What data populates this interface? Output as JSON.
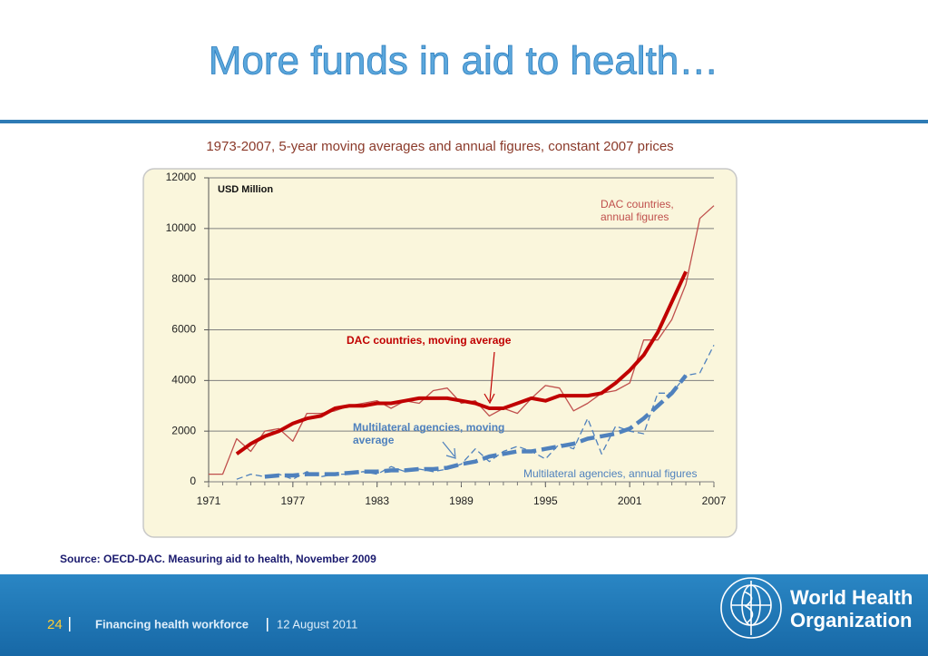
{
  "slide_title": "More funds in aid to health…",
  "chart_data": {
    "type": "line",
    "subtitle": "1973-2007, 5-year moving averages and annual figures, constant 2007 prices",
    "y_label": "USD Million",
    "x": [
      1971,
      1972,
      1973,
      1974,
      1975,
      1976,
      1977,
      1978,
      1979,
      1980,
      1981,
      1982,
      1983,
      1984,
      1985,
      1986,
      1987,
      1988,
      1989,
      1990,
      1991,
      1992,
      1993,
      1994,
      1995,
      1996,
      1997,
      1998,
      1999,
      2000,
      2001,
      2002,
      2003,
      2004,
      2005,
      2006,
      2007
    ],
    "xlim": [
      1971,
      2007
    ],
    "xticks": [
      1971,
      1977,
      1983,
      1989,
      1995,
      2001,
      2007
    ],
    "ylim": [
      0,
      12000
    ],
    "yticks": [
      0,
      2000,
      4000,
      6000,
      8000,
      10000,
      12000
    ],
    "grid": true,
    "series": [
      {
        "color": "#c0504d",
        "style": "thin",
        "values": [
          300,
          300,
          1700,
          1200,
          2000,
          2100,
          1600,
          2700,
          2700,
          2800,
          3000,
          3100,
          3200,
          2900,
          3200,
          3100,
          3600,
          3700,
          3100,
          3200,
          2600,
          2900,
          2700,
          3300,
          3800,
          3700,
          2800,
          3100,
          3500,
          3600,
          3900,
          5600,
          5600,
          6400,
          7800,
          10400,
          10900
        ]
      },
      {
        "color": "#c00000",
        "style": "thick",
        "values": [
          null,
          null,
          1100,
          1500,
          1800,
          2000,
          2300,
          2500,
          2600,
          2900,
          3000,
          3000,
          3100,
          3100,
          3200,
          3300,
          3300,
          3300,
          3200,
          3100,
          2900,
          2900,
          3100,
          3300,
          3200,
          3400,
          3400,
          3400,
          3500,
          3900,
          4400,
          5000,
          5900,
          7100,
          8300,
          null,
          null
        ]
      },
      {
        "color": "#4f81bd",
        "style": "thin-dashed",
        "values": [
          null,
          null,
          100,
          300,
          200,
          300,
          100,
          400,
          200,
          300,
          300,
          400,
          300,
          600,
          400,
          500,
          400,
          500,
          700,
          1300,
          800,
          1200,
          1400,
          1200,
          900,
          1500,
          1300,
          2500,
          1100,
          2200,
          2000,
          1900,
          3500,
          3500,
          4200,
          4300,
          5400
        ]
      },
      {
        "color": "#4f81bd",
        "style": "thick-dashed",
        "values": [
          null,
          null,
          null,
          null,
          200,
          250,
          250,
          300,
          300,
          300,
          350,
          400,
          400,
          450,
          450,
          500,
          500,
          550,
          700,
          800,
          1000,
          1100,
          1200,
          1200,
          1300,
          1400,
          1500,
          1700,
          1800,
          1900,
          2100,
          2500,
          3000,
          3500,
          4200,
          null,
          null
        ]
      }
    ],
    "annotations": [
      {
        "lines": [
          "DAC countries,",
          "annual figures"
        ],
        "color": "#c0504d"
      },
      {
        "lines": [
          "DAC countries, moving average"
        ],
        "color": "#c00000"
      },
      {
        "lines": [
          "Multilateral agencies, moving",
          "average"
        ],
        "color": "#4f81bd"
      },
      {
        "lines": [
          "Multilateral agencies, annual figures"
        ],
        "color": "#4f81bd"
      }
    ]
  },
  "source": "Source: OECD-DAC. Measuring aid to health, November 2009",
  "footer": {
    "page": "24",
    "title": "Financing health workforce",
    "date": "12 August 2011",
    "org": [
      "World Health",
      "Organization"
    ]
  }
}
